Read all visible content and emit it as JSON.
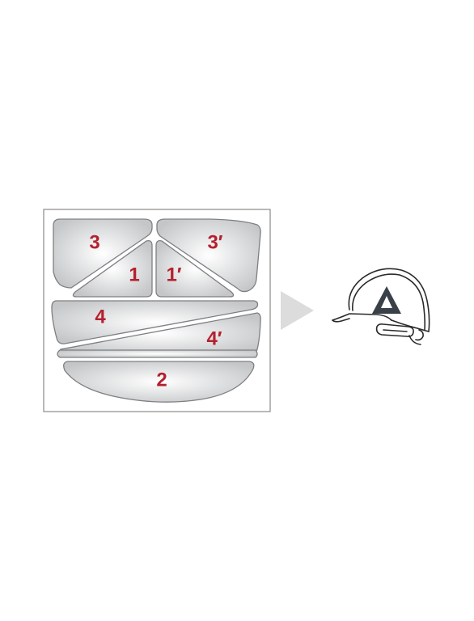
{
  "colors": {
    "label": "#b5202e",
    "piece_fill_center": "#ffffff",
    "piece_fill_edge": "#c4c6c8",
    "piece_stroke": "#7d7f82",
    "frame_stroke": "#8a8a8a",
    "arrow": "#dcdcdc",
    "helmet_stroke": "#2a2a2a",
    "logo": "#3a4048"
  },
  "sheet": {
    "pieces": [
      {
        "id": "3",
        "label": "3"
      },
      {
        "id": "3p",
        "label": "3′"
      },
      {
        "id": "1",
        "label": "1"
      },
      {
        "id": "1p",
        "label": "1′"
      },
      {
        "id": "4",
        "label": "4"
      },
      {
        "id": "4p",
        "label": "4′"
      },
      {
        "id": "strip",
        "label": ""
      },
      {
        "id": "2",
        "label": "2"
      }
    ]
  },
  "icons": {
    "arrow": "arrow-right-icon",
    "helmet": "safety-helmet-icon",
    "logo": "triangle-logo-icon"
  }
}
